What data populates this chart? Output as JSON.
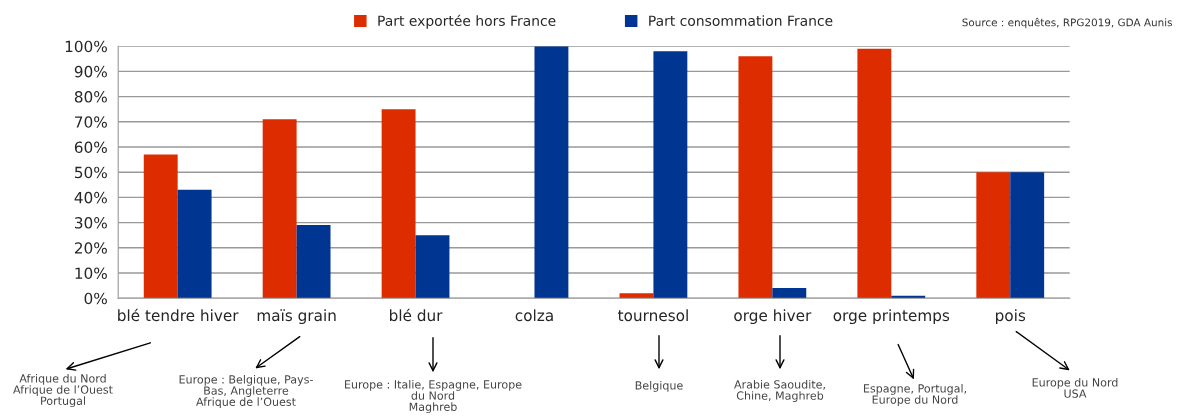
{
  "chart_data": {
    "type": "bar",
    "categories": [
      "blé tendre hiver",
      "maïs grain",
      "blé dur",
      "colza",
      "tournesol",
      "orge hiver",
      "orge printemps",
      "pois"
    ],
    "series": [
      {
        "name": "Part exportée hors France",
        "color": "#dd2c00",
        "values": [
          57,
          71,
          75,
          0,
          2,
          96,
          99,
          50
        ]
      },
      {
        "name": "Part consommation France",
        "color": "#003591",
        "values": [
          43,
          29,
          25,
          100,
          98,
          4,
          1,
          50
        ]
      }
    ],
    "ylim": [
      0,
      100
    ],
    "yticks": [
      {
        "value": 0,
        "label": "0%"
      },
      {
        "value": 10,
        "label": "10%"
      },
      {
        "value": 20,
        "label": "20%"
      },
      {
        "value": 30,
        "label": "30%"
      },
      {
        "value": 40,
        "label": "40%"
      },
      {
        "value": 50,
        "label": "50%"
      },
      {
        "value": 60,
        "label": "60%"
      },
      {
        "value": 70,
        "label": "70%"
      },
      {
        "value": 80,
        "label": "80%"
      },
      {
        "value": 90,
        "label": "90%"
      },
      {
        "value": 100,
        "label": "100%"
      }
    ],
    "grid": "y",
    "legend": "top",
    "annotations": [
      "Source : enquêtes, RPG2019, GDA Aunis",
      "Afrique du Nord\nAfrique de l’Ouest\nPortugal",
      "Europe : Belgique, Pays-\nBas, Angleterre\nAfrique de l’Ouest",
      "Europe : Italie, Espagne, Europe\ndu Nord\nMaghreb",
      "Belgique",
      "Arabie Saoudite,\nChine, Maghreb",
      "Espagne, Portugal,\nEurope du Nord",
      "Europe du Nord\nUSA"
    ]
  }
}
